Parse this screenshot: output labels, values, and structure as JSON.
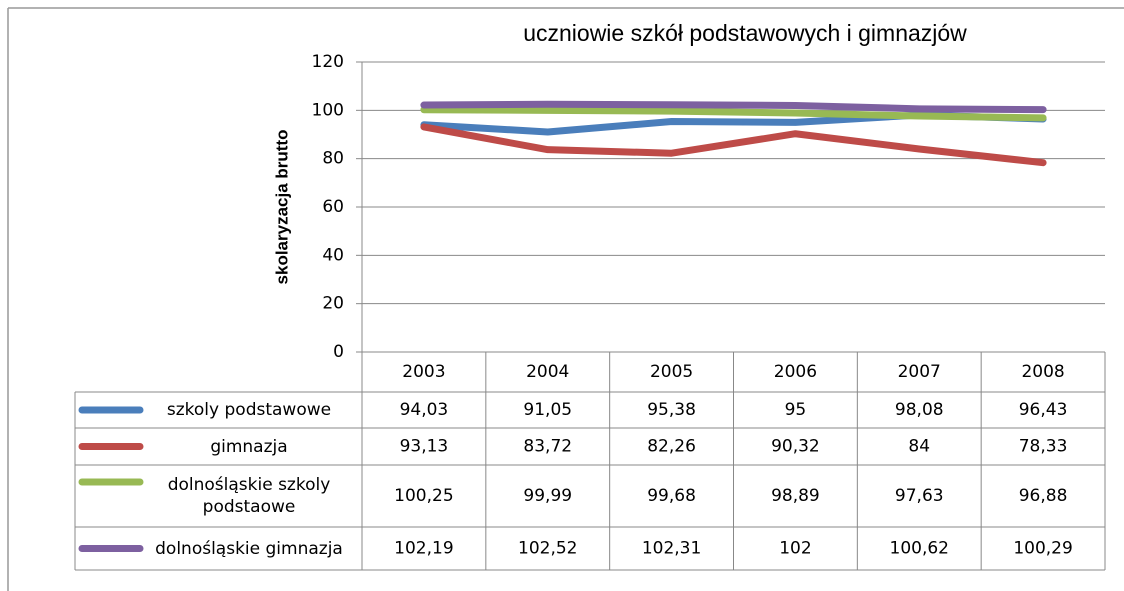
{
  "chart_data": {
    "type": "line",
    "title": "uczniowie szkół podstawowych i gimnazjów",
    "y_label": "skolaryzacja brutto",
    "categories": [
      "2003",
      "2004",
      "2005",
      "2006",
      "2007",
      "2008"
    ],
    "ylim": [
      0,
      120
    ],
    "yticks": [
      0,
      20,
      40,
      60,
      80,
      100,
      120
    ],
    "grid": true,
    "series": [
      {
        "name": "szkoly podstawowe",
        "color": "#4a7ebb",
        "values": [
          94.03,
          91.05,
          95.38,
          95,
          98.08,
          96.43
        ],
        "value_labels": [
          "94,03",
          "91,05",
          "95,38",
          "95",
          "98,08",
          "96,43"
        ]
      },
      {
        "name": "gimnazja",
        "color": "#be4b48",
        "values": [
          93.13,
          83.72,
          82.26,
          90.32,
          84,
          78.33
        ],
        "value_labels": [
          "93,13",
          "83,72",
          "82,26",
          "90,32",
          "84",
          "78,33"
        ]
      },
      {
        "name": "dolnośląskie szkoly podstaowe",
        "color": "#98b954",
        "values": [
          100.25,
          99.99,
          99.68,
          98.89,
          97.63,
          96.88
        ],
        "value_labels": [
          "100,25",
          "99,99",
          "99,68",
          "98,89",
          "97,63",
          "96,88"
        ]
      },
      {
        "name": "dolnośląskie gimnazja",
        "color": "#7d60a0",
        "values": [
          102.19,
          102.52,
          102.31,
          102,
          100.62,
          100.29
        ],
        "value_labels": [
          "102,19",
          "102,52",
          "102,31",
          "102",
          "100,62",
          "100,29"
        ]
      }
    ]
  }
}
